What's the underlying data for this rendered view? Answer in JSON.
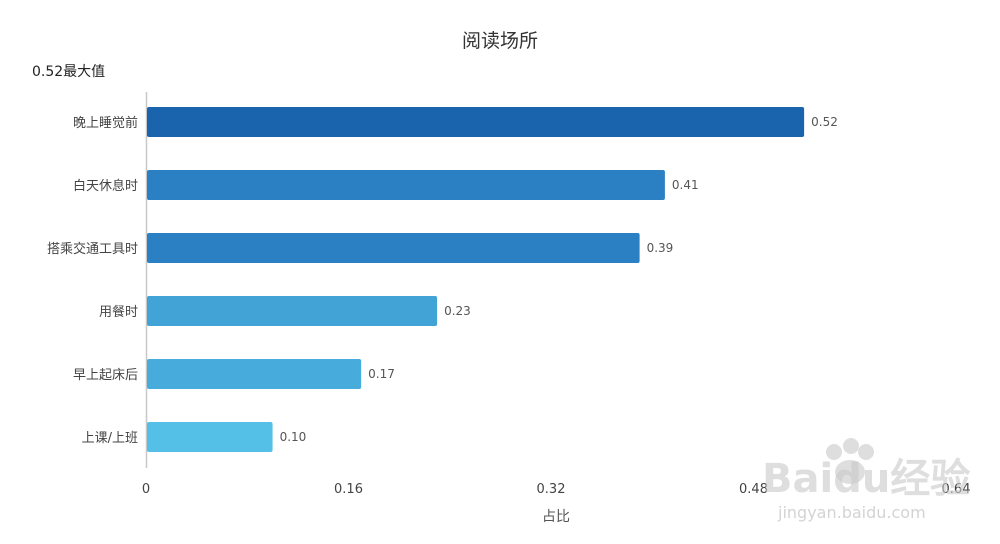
{
  "chart_data": {
    "type": "bar",
    "orientation": "horizontal",
    "title": "阅读场所",
    "annotation": "0.52最大值",
    "xlabel": "占比",
    "ylabel": "",
    "xlim": [
      0,
      0.64
    ],
    "x_ticks": [
      "0",
      "0.16",
      "0.32",
      "0.48",
      "0.64"
    ],
    "grid": false,
    "categories": [
      "晚上睡觉前",
      "白天休息时",
      "搭乘交通工具时",
      "用餐时",
      "早上起床后",
      "上课/上班"
    ],
    "values": [
      0.52,
      0.41,
      0.39,
      0.23,
      0.17,
      0.1
    ],
    "value_labels": [
      "0.52",
      "0.41",
      "0.39",
      "0.23",
      "0.17",
      "0.10"
    ],
    "colors": [
      "#1a64ae",
      "#2a80c2",
      "#2a80c2",
      "#41a3d6",
      "#47acdc",
      "#54c0e8"
    ]
  },
  "watermark": {
    "brand": "Baidu经验",
    "url": "jingyan.baidu.com"
  }
}
